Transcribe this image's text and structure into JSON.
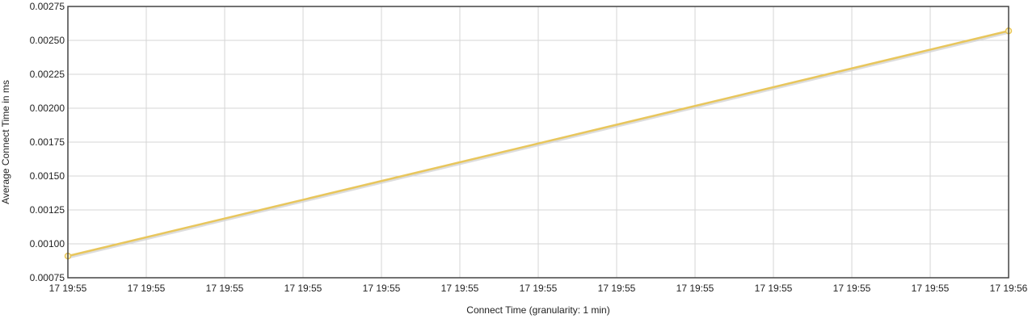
{
  "chart_data": {
    "type": "line",
    "title": "",
    "xlabel": "Connect Time (granularity: 1 min)",
    "ylabel": "Average Connect Time in ms",
    "ylim": [
      0.00075,
      0.00275
    ],
    "yticks": [
      "0.00075",
      "0.00100",
      "0.00125",
      "0.00150",
      "0.00175",
      "0.00200",
      "0.00225",
      "0.00250",
      "0.00275"
    ],
    "xticks": [
      "17 19:55",
      "17 19:55",
      "17 19:55",
      "17 19:55",
      "17 19:55",
      "17 19:55",
      "17 19:55",
      "17 19:55",
      "17 19:55",
      "17 19:55",
      "17 19:55",
      "17 19:55",
      "17 19:56"
    ],
    "grid": true,
    "series": [
      {
        "color": "#e8c65c",
        "points": [
          {
            "x": "17 19:55",
            "y": 0.00091
          },
          {
            "x": "17 19:56",
            "y": 0.00257
          }
        ]
      }
    ]
  }
}
